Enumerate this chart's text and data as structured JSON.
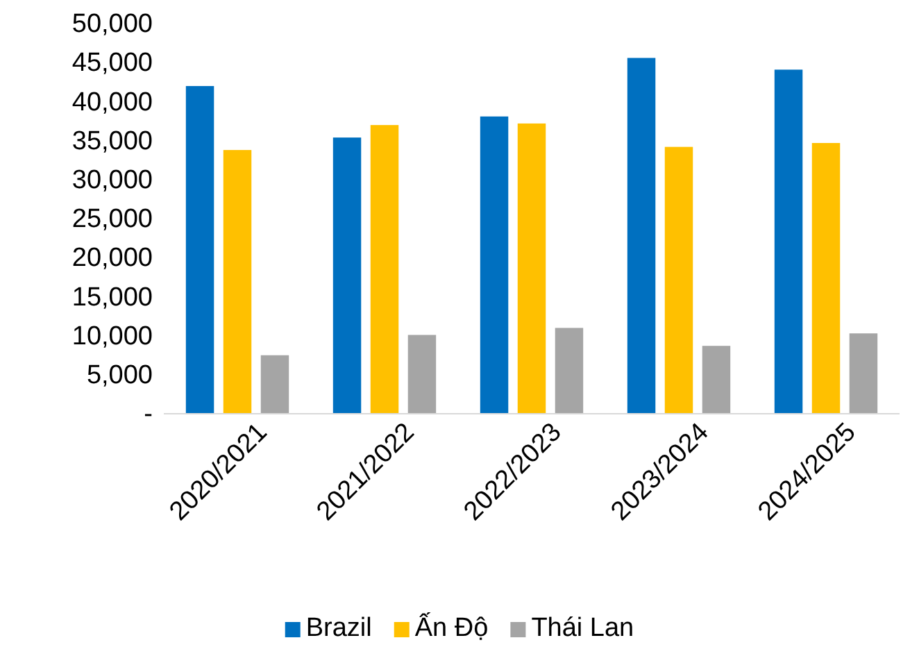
{
  "chart_data": {
    "type": "bar",
    "categories": [
      "2020/2021",
      "2021/2022",
      "2022/2023",
      "2023/2024",
      "2024/2025"
    ],
    "series": [
      {
        "name": "Brazil",
        "color": "#0070c0",
        "values": [
          42000,
          35400,
          38100,
          45600,
          44100
        ]
      },
      {
        "name": "Ấn Độ",
        "color": "#ffc000",
        "values": [
          33800,
          37000,
          37200,
          34200,
          34700
        ]
      },
      {
        "name": "Thái Lan",
        "color": "#a5a5a5",
        "values": [
          7500,
          10100,
          11000,
          8700,
          10300
        ]
      }
    ],
    "ylim": [
      0,
      50000
    ],
    "yticks": [
      {
        "value": 0,
        "label": "-"
      },
      {
        "value": 5000,
        "label": "5,000"
      },
      {
        "value": 10000,
        "label": "10,000"
      },
      {
        "value": 15000,
        "label": "15,000"
      },
      {
        "value": 20000,
        "label": "20,000"
      },
      {
        "value": 25000,
        "label": "25,000"
      },
      {
        "value": 30000,
        "label": "30,000"
      },
      {
        "value": 35000,
        "label": "35,000"
      },
      {
        "value": 40000,
        "label": "40,000"
      },
      {
        "value": 45000,
        "label": "45,000"
      },
      {
        "value": 50000,
        "label": "50,000"
      }
    ],
    "grid": false,
    "legend": "bottom"
  }
}
